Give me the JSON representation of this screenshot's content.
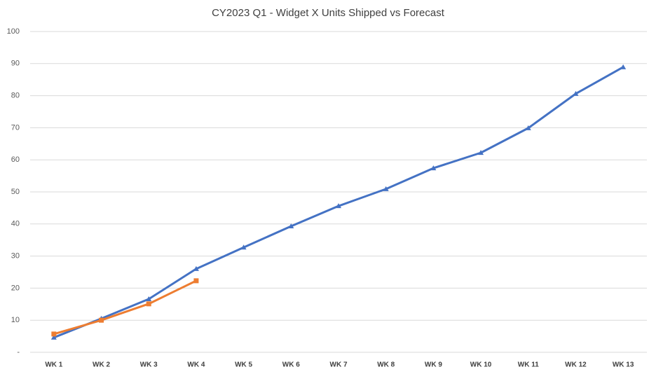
{
  "chart_data": {
    "type": "line",
    "title": "CY2023 Q1 - Widget X Units Shipped vs Forecast",
    "categories": [
      "WK 1",
      "WK 2",
      "WK 3",
      "WK 4",
      "WK 5",
      "WK 6",
      "WK 7",
      "WK 8",
      "WK 9",
      "WK 10",
      "WK 11",
      "WK 12",
      "WK 13"
    ],
    "series": [
      {
        "color": "#4472c4",
        "marker": "triangle",
        "values": [
          4.6,
          10.5,
          16.6,
          26,
          32.7,
          39.3,
          45.6,
          50.9,
          57.4,
          62.2,
          69.9,
          80.6,
          88.9
        ]
      },
      {
        "color": "#ed7d31",
        "marker": "square",
        "values": [
          5.7,
          10,
          15.1,
          22.3,
          null,
          null,
          null,
          null,
          null,
          null,
          null,
          null,
          null
        ]
      }
    ],
    "ylim": [
      0,
      100
    ],
    "yticks": [
      {
        "value": 0,
        "label": "-"
      },
      10,
      20,
      30,
      40,
      50,
      60,
      70,
      80,
      90,
      100
    ],
    "grid": true
  }
}
